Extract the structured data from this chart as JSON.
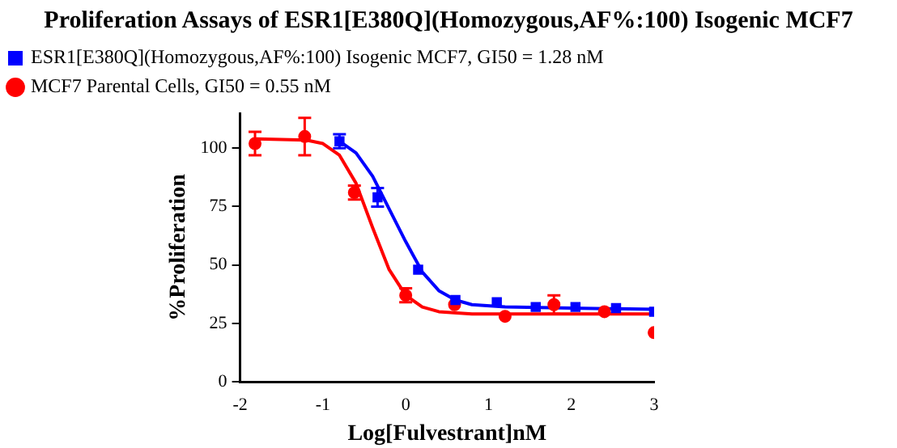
{
  "chart_data": {
    "type": "scatter",
    "title": "Proliferation Assays of ESR1[E380Q](Homozygous,AF%:100) Isogenic MCF7",
    "xlabel": "Log[Fulvestrant]nM",
    "ylabel": "%Proliferation",
    "xlim": [
      -2,
      3
    ],
    "xticks": [
      -2,
      -1,
      0,
      1,
      2,
      3
    ],
    "ylim": [
      0,
      115
    ],
    "yticks": [
      0,
      25,
      50,
      75,
      100
    ],
    "grid": false,
    "legend": "top",
    "series": [
      {
        "name": "ESR1[E380Q](Homozygous,AF%:100) Isogenic MCF7, GI50 = 1.28 nM",
        "color": "#0000ff",
        "marker": "square",
        "x": [
          -0.8,
          -0.34,
          0.15,
          0.6,
          1.1,
          1.57,
          2.05,
          2.54,
          3.0
        ],
        "values": [
          103,
          79,
          48,
          35,
          34,
          32,
          32,
          31.5,
          30
        ],
        "errors": [
          3,
          4,
          null,
          null,
          null,
          null,
          null,
          null,
          null
        ]
      },
      {
        "name": "MCF7 Parental Cells, GI50 = 0.55 nM",
        "color": "#ff0000",
        "marker": "circle",
        "x": [
          -1.82,
          -1.22,
          -0.62,
          0,
          0.59,
          1.2,
          1.79,
          2.4,
          3.0
        ],
        "values": [
          102,
          105,
          81,
          37,
          33,
          28,
          33,
          30,
          21
        ],
        "errors": [
          5,
          8,
          3,
          3,
          null,
          null,
          4,
          null,
          null
        ]
      },
      {
        "type": "line",
        "color": "#0000ff",
        "marker": "none",
        "x": [
          -0.8,
          -0.6,
          -0.4,
          -0.2,
          0,
          0.2,
          0.4,
          0.6,
          0.8,
          1.2,
          2,
          3
        ],
        "values": [
          103,
          98,
          88,
          74,
          60,
          47,
          39,
          35,
          33,
          32,
          31.5,
          31
        ]
      },
      {
        "type": "line",
        "color": "#ff0000",
        "marker": "none",
        "x": [
          -1.8,
          -1.2,
          -1,
          -0.8,
          -0.6,
          -0.4,
          -0.2,
          0,
          0.2,
          0.4,
          0.8,
          1.5,
          3
        ],
        "values": [
          104,
          103.5,
          102,
          97,
          85,
          66,
          48,
          37,
          32,
          30,
          29,
          29,
          29
        ]
      }
    ]
  }
}
